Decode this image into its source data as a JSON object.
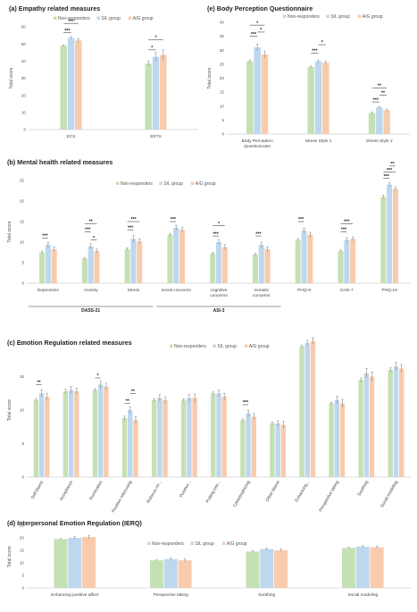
{
  "colors": {
    "non_responders": "#c5e0b4",
    "sl_group": "#bdd7ee",
    "ag_group": "#f8cbad",
    "error": "#8c8c8c",
    "axis": "#d0d0d0"
  },
  "legend": [
    "Non-responders",
    "S/L group",
    "A/G group"
  ],
  "chart_data": [
    {
      "id": "a",
      "type": "bar",
      "title": "(a) Empathy related measures",
      "ylabel": "Total score",
      "xlabel": "",
      "ylim": [
        0,
        60
      ],
      "yticks": [
        0,
        10,
        20,
        30,
        40,
        50,
        60
      ],
      "categories": [
        "ECS",
        "EETS"
      ],
      "series": [
        {
          "name": "Non-responders",
          "values": [
            49,
            38.5
          ],
          "err": [
            0.5,
            1.5
          ]
        },
        {
          "name": "S/L group",
          "values": [
            53.5,
            42.5
          ],
          "err": [
            0.8,
            2.5
          ]
        },
        {
          "name": "A/G group",
          "values": [
            52,
            43.5
          ],
          "err": [
            1,
            3
          ]
        }
      ],
      "brackets": [
        {
          "cat": 0,
          "from": 0,
          "to": 1,
          "y": 56.5,
          "label": "***"
        },
        {
          "cat": 0,
          "from": 0,
          "to": 2,
          "y": 62,
          "label": "***"
        },
        {
          "cat": 1,
          "from": 0,
          "to": 1,
          "y": 46.5,
          "label": "*"
        },
        {
          "cat": 1,
          "from": 0,
          "to": 2,
          "y": 52.5,
          "label": "*"
        }
      ]
    },
    {
      "id": "e",
      "type": "bar",
      "title": "(e) Body Perception Questionnaire",
      "ylabel": "Total score",
      "xlabel": "",
      "ylim": [
        0,
        40
      ],
      "yticks": [
        0,
        5,
        10,
        15,
        20,
        25,
        30,
        35,
        40
      ],
      "categories": [
        "Body Perception Questionnaire",
        "Stress Style 1",
        "Stress Style 2"
      ],
      "series": [
        {
          "name": "Non-responders",
          "values": [
            26,
            24,
            7.5
          ],
          "err": [
            0.5,
            0.4,
            0.3
          ]
        },
        {
          "name": "S/L group",
          "values": [
            31,
            26,
            9.5
          ],
          "err": [
            1.2,
            0.5,
            0.4
          ]
        },
        {
          "name": "A/G group",
          "values": [
            28.5,
            25.5,
            8.5
          ],
          "err": [
            1.2,
            0.6,
            0.4
          ]
        }
      ],
      "brackets": [
        {
          "cat": 0,
          "from": 0,
          "to": 1,
          "y": 35,
          "label": "***"
        },
        {
          "cat": 0,
          "from": 1,
          "to": 2,
          "y": 36.5,
          "label": "*"
        },
        {
          "cat": 0,
          "from": 0,
          "to": 2,
          "y": 39,
          "label": "*"
        },
        {
          "cat": 1,
          "from": 0,
          "to": 1,
          "y": 29,
          "label": "***"
        },
        {
          "cat": 1,
          "from": 1,
          "to": 2,
          "y": 32,
          "label": "*"
        },
        {
          "cat": 2,
          "from": 0,
          "to": 1,
          "y": 11.5,
          "label": "***"
        },
        {
          "cat": 2,
          "from": 1,
          "to": 2,
          "y": 14,
          "label": "**"
        },
        {
          "cat": 2,
          "from": 0,
          "to": 2,
          "y": 16.5,
          "label": "**"
        }
      ]
    },
    {
      "id": "b",
      "type": "bar",
      "title": "(b) Mental health related measures",
      "ylabel": "Total score",
      "xlabel": "",
      "ylim": [
        0,
        25
      ],
      "yticks": [
        0,
        5,
        10,
        15,
        20,
        25
      ],
      "categories": [
        "Depression",
        "Anxiety",
        "Stress",
        "social concerns",
        "cognitive concerns",
        "somatic concerns",
        "PHQ-9",
        "GAD-7",
        "PHQ-15"
      ],
      "series": [
        {
          "name": "Non-responders",
          "values": [
            7.5,
            6,
            8.3,
            11.8,
            7.2,
            7,
            10.5,
            7.8,
            21
          ],
          "err": [
            0.3,
            0.2,
            0.3,
            0.3,
            0.3,
            0.3,
            0.3,
            0.3,
            0.4
          ]
        },
        {
          "name": "S/L group",
          "values": [
            9.3,
            9,
            10.8,
            13.5,
            10,
            9.3,
            12.8,
            10.5,
            24
          ],
          "err": [
            0.6,
            0.6,
            0.8,
            0.6,
            0.6,
            0.7,
            0.6,
            0.6,
            0.5
          ]
        },
        {
          "name": "A/G group",
          "values": [
            8.3,
            7.8,
            10.2,
            13,
            8.8,
            8.3,
            11.8,
            10.8,
            23
          ],
          "err": [
            0.5,
            0.5,
            0.6,
            0.6,
            0.6,
            0.6,
            0.6,
            0.5,
            0.5
          ]
        }
      ],
      "brackets": [
        {
          "cat": 0,
          "from": 0,
          "to": 1,
          "y": 11,
          "label": "***"
        },
        {
          "cat": 1,
          "from": 1,
          "to": 2,
          "y": 10.5,
          "label": "*"
        },
        {
          "cat": 1,
          "from": 0,
          "to": 1,
          "y": 12.5,
          "label": "***"
        },
        {
          "cat": 1,
          "from": 0,
          "to": 2,
          "y": 14.5,
          "label": "**"
        },
        {
          "cat": 2,
          "from": 0,
          "to": 1,
          "y": 13,
          "label": "***"
        },
        {
          "cat": 2,
          "from": 0,
          "to": 2,
          "y": 15,
          "label": "***"
        },
        {
          "cat": 3,
          "from": 0,
          "to": 1,
          "y": 15,
          "label": "***"
        },
        {
          "cat": 4,
          "from": 0,
          "to": 1,
          "y": 11.5,
          "label": "***"
        },
        {
          "cat": 4,
          "from": 0,
          "to": 2,
          "y": 14,
          "label": "*"
        },
        {
          "cat": 5,
          "from": 0,
          "to": 1,
          "y": 11.5,
          "label": "***"
        },
        {
          "cat": 6,
          "from": 0,
          "to": 1,
          "y": 15,
          "label": "***"
        },
        {
          "cat": 7,
          "from": 0,
          "to": 1,
          "y": 12.5,
          "label": "***"
        },
        {
          "cat": 7,
          "from": 0,
          "to": 2,
          "y": 14.5,
          "label": "***"
        },
        {
          "cat": 8,
          "from": 0,
          "to": 1,
          "y": 25.5,
          "label": "***"
        },
        {
          "cat": 8,
          "from": 0,
          "to": 2,
          "y": 27,
          "label": "***"
        },
        {
          "cat": 8,
          "from": 1,
          "to": 2,
          "y": 28.5,
          "label": "**"
        }
      ],
      "groups": [
        {
          "label": "DASS-21",
          "from": 0,
          "to": 2
        },
        {
          "label": "ASI-3",
          "from": 3,
          "to": 5
        }
      ]
    },
    {
      "id": "c",
      "type": "bar",
      "title": "(c) Emotion Regulation related measures",
      "ylabel": "Total score",
      "xlabel": "",
      "ylim": [
        0,
        20
      ],
      "yticks": [
        0,
        5,
        10,
        15,
        20
      ],
      "categories": [
        "Self-blame",
        "Acceptance",
        "Rumination",
        "Positive refocusing",
        "Refocus on...",
        "Positive...",
        "Putting into...",
        "Catastrophizing",
        "Other blame",
        "Enhancing...",
        "Perspective taking",
        "Soothing",
        "Social modeling"
      ],
      "series": [
        {
          "name": "Non-responders",
          "values": [
            11.5,
            12.8,
            13,
            8.8,
            11.5,
            11.5,
            12.5,
            8.5,
            8,
            19.5,
            11,
            14.5,
            16
          ],
          "err": [
            0.2,
            0.3,
            0.2,
            0.3,
            0.2,
            0.2,
            0.2,
            0.2,
            0.2,
            0.2,
            0.2,
            0.3,
            0.3
          ]
        },
        {
          "name": "S/L group",
          "values": [
            12.5,
            13,
            13.8,
            10,
            11.8,
            11.8,
            12.5,
            9.5,
            8,
            20,
            11.5,
            15.5,
            16.5
          ],
          "err": [
            0.5,
            0.5,
            0.5,
            0.5,
            0.5,
            0.5,
            0.5,
            0.5,
            0.4,
            0.4,
            0.6,
            0.7,
            0.6
          ]
        },
        {
          "name": "A/G group",
          "values": [
            12,
            12.8,
            13.5,
            8.5,
            11.5,
            11.8,
            12,
            9,
            7.8,
            20.3,
            11,
            15,
            16.2
          ],
          "err": [
            0.5,
            0.5,
            0.5,
            0.5,
            0.5,
            0.6,
            0.5,
            0.5,
            0.5,
            0.5,
            0.6,
            0.7,
            0.6
          ]
        }
      ],
      "brackets": [
        {
          "cat": 0,
          "from": 0,
          "to": 1,
          "y": 13.8,
          "label": "**"
        },
        {
          "cat": 2,
          "from": 0,
          "to": 1,
          "y": 14.8,
          "label": "*"
        },
        {
          "cat": 3,
          "from": 0,
          "to": 1,
          "y": 11,
          "label": "**"
        },
        {
          "cat": 3,
          "from": 1,
          "to": 2,
          "y": 12.5,
          "label": "**"
        },
        {
          "cat": 7,
          "from": 0,
          "to": 1,
          "y": 10.8,
          "label": "***"
        }
      ]
    },
    {
      "id": "d",
      "type": "bar",
      "title": "(d) Interpersonal Emotion Regulation (IERQ)",
      "ylabel": "Total score",
      "xlabel": "",
      "ylim": [
        0,
        25
      ],
      "yticks": [
        0,
        5,
        10,
        15,
        20,
        25
      ],
      "categories": [
        "Enhancing positive affect",
        "Perspective taking",
        "Soothing",
        "Social modeling"
      ],
      "series": [
        {
          "name": "Non-responders",
          "values": [
            19.5,
            11,
            14.5,
            16
          ],
          "err": [
            0.2,
            0.2,
            0.3,
            0.2
          ]
        },
        {
          "name": "S/L group",
          "values": [
            20,
            11.5,
            15.5,
            16.5
          ],
          "err": [
            0.5,
            0.5,
            0.5,
            0.4
          ]
        },
        {
          "name": "A/G group",
          "values": [
            20.3,
            11,
            15,
            16.2
          ],
          "err": [
            0.7,
            0.6,
            0.6,
            0.4
          ]
        }
      ],
      "brackets": []
    }
  ]
}
